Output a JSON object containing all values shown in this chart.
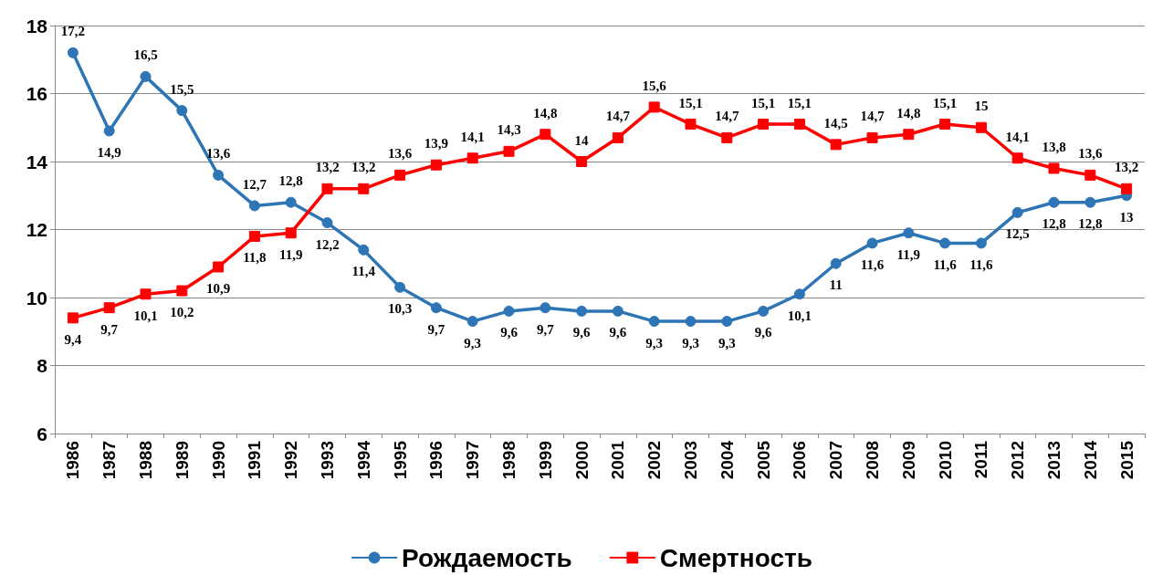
{
  "chart_data": {
    "type": "line",
    "categories": [
      "1986",
      "1987",
      "1988",
      "1989",
      "1990",
      "1991",
      "1992",
      "1993",
      "1994",
      "1995",
      "1996",
      "1997",
      "1998",
      "1999",
      "2000",
      "2001",
      "2002",
      "2003",
      "2004",
      "2005",
      "2006",
      "2007",
      "2008",
      "2009",
      "2010",
      "2011",
      "2012",
      "2013",
      "2014",
      "2015"
    ],
    "series": [
      {
        "name": "Рождаемость",
        "color": "#2e75b6",
        "marker": "circle",
        "values": [
          17.2,
          14.9,
          16.5,
          15.5,
          13.6,
          12.7,
          12.8,
          12.2,
          11.4,
          10.3,
          9.7,
          9.3,
          9.6,
          9.7,
          9.6,
          9.6,
          9.3,
          9.3,
          9.3,
          9.6,
          10.1,
          11,
          11.6,
          11.9,
          11.6,
          11.6,
          12.5,
          12.8,
          12.8,
          13
        ],
        "value_labels": [
          "17,2",
          "14,9",
          "16,5",
          "15,5",
          "13,6",
          "12,7",
          "12,8",
          "12,2",
          "11,4",
          "10,3",
          "9,7",
          "9,3",
          "9,6",
          "9,7",
          "9,6",
          "9,6",
          "9,3",
          "9,3",
          "9,3",
          "9,6",
          "10,1",
          "11",
          "11,6",
          "11,9",
          "11,6",
          "11,6",
          "12,5",
          "12,8",
          "12,8",
          "13"
        ]
      },
      {
        "name": "Смертность",
        "color": "#ff0000",
        "marker": "square",
        "values": [
          9.4,
          9.7,
          10.1,
          10.2,
          10.9,
          11.8,
          11.9,
          13.2,
          13.2,
          13.6,
          13.9,
          14.1,
          14.3,
          14.8,
          14,
          14.7,
          15.6,
          15.1,
          14.7,
          15.1,
          15.1,
          14.5,
          14.7,
          14.8,
          15.1,
          15,
          14.1,
          13.8,
          13.6,
          13.2
        ],
        "value_labels": [
          "9,4",
          "9,7",
          "10,1",
          "10,2",
          "10,9",
          "11,8",
          "11,9",
          "13,2",
          "13,2",
          "13,6",
          "13,9",
          "14,1",
          "14,3",
          "14,8",
          "14",
          "14,7",
          "15,6",
          "15,1",
          "14,7",
          "15,1",
          "15,1",
          "14,5",
          "14,7",
          "14,8",
          "15,1",
          "15",
          "14,1",
          "13,8",
          "13,6",
          "13,2"
        ]
      }
    ],
    "ylim": [
      6,
      18
    ],
    "yticks": [
      6,
      8,
      10,
      12,
      14,
      16,
      18
    ],
    "grid": "y",
    "legend": "bottom",
    "line_style": "solid"
  }
}
